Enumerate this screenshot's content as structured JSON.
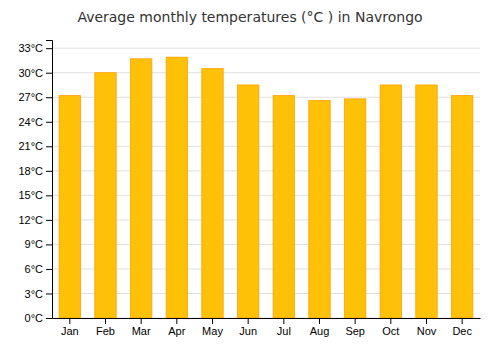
{
  "chart_data": {
    "type": "bar",
    "title": "Average monthly temperatures (°C ) in Navrongo",
    "categories": [
      "Jan",
      "Feb",
      "Mar",
      "Apr",
      "May",
      "Jun",
      "Jul",
      "Aug",
      "Sep",
      "Oct",
      "Nov",
      "Dec"
    ],
    "values": [
      27.2,
      30.0,
      31.7,
      31.9,
      30.5,
      28.5,
      27.2,
      26.6,
      26.8,
      28.5,
      28.5,
      27.2
    ],
    "color": "#FFC107",
    "ylim": [
      0,
      34
    ],
    "yticks": [
      {
        "value": 0,
        "label": "0°C"
      },
      {
        "value": 3,
        "label": "3°C"
      },
      {
        "value": 6,
        "label": "6°C"
      },
      {
        "value": 9,
        "label": "9°C"
      },
      {
        "value": 12,
        "label": "12°C"
      },
      {
        "value": 15,
        "label": "15°C"
      },
      {
        "value": 18,
        "label": "18°C"
      },
      {
        "value": 21,
        "label": "21°C"
      },
      {
        "value": 24,
        "label": "24°C"
      },
      {
        "value": 27,
        "label": "27°C"
      },
      {
        "value": 30,
        "label": "30°C"
      },
      {
        "value": 33,
        "label": "33°C"
      }
    ],
    "grid": true
  }
}
